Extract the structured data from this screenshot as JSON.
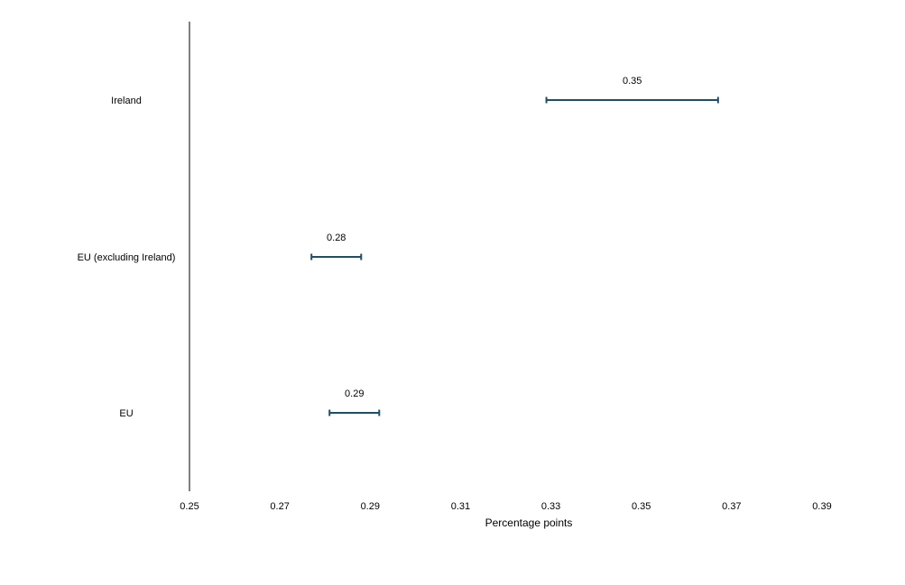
{
  "chart_data": {
    "type": "errorbar",
    "orientation": "horizontal",
    "xlabel": "Percentage points",
    "xlim": [
      0.25,
      0.39
    ],
    "xticks": [
      0.25,
      0.27,
      0.29,
      0.31,
      0.33,
      0.35,
      0.37,
      0.39
    ],
    "xtick_labels": [
      "0.25",
      "0.27",
      "0.29",
      "0.31",
      "0.33",
      "0.35",
      "0.37",
      "0.39"
    ],
    "categories": [
      "Ireland",
      "EU (excluding Ireland)",
      "EU"
    ],
    "estimates": [
      0.35,
      0.28,
      0.29
    ],
    "estimate_labels": [
      "0.35",
      "0.28",
      "0.29"
    ],
    "lower": [
      0.329,
      0.277,
      0.281
    ],
    "upper": [
      0.367,
      0.288,
      0.292
    ],
    "grid": false,
    "color": "#1F4E66"
  }
}
